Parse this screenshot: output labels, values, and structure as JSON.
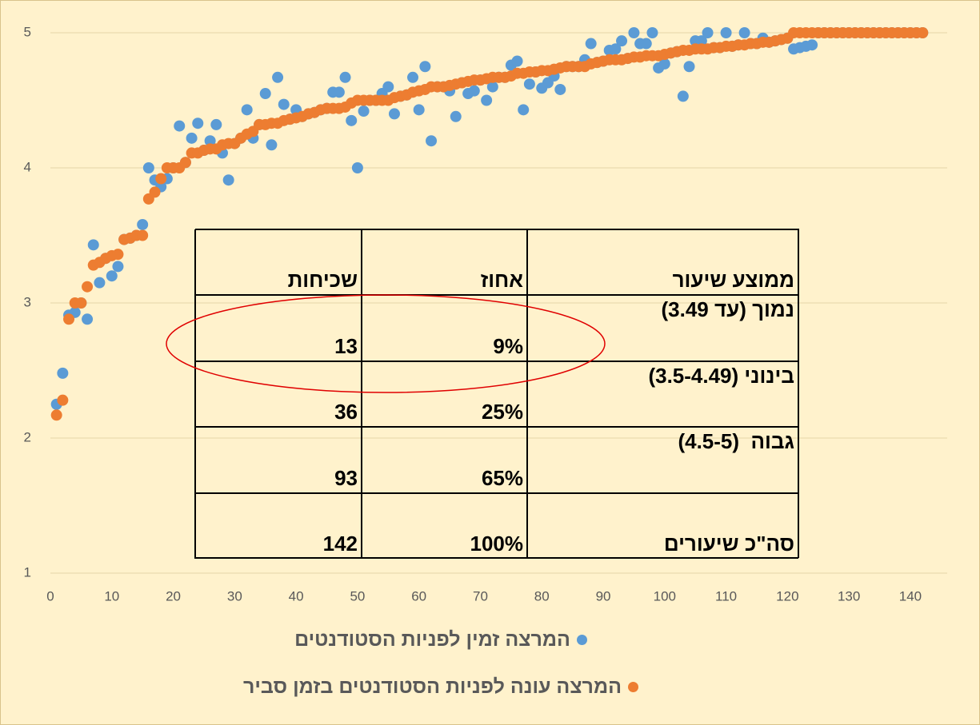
{
  "chart_data": {
    "type": "scatter",
    "x": [
      1,
      2,
      3,
      4,
      5,
      6,
      7,
      8,
      9,
      10,
      11,
      12,
      13,
      14,
      15,
      16,
      17,
      18,
      19,
      20,
      21,
      22,
      23,
      24,
      25,
      26,
      27,
      28,
      29,
      30,
      31,
      32,
      33,
      34,
      35,
      36,
      37,
      38,
      39,
      40,
      41,
      42,
      43,
      44,
      45,
      46,
      47,
      48,
      49,
      50,
      51,
      52,
      53,
      54,
      55,
      56,
      57,
      58,
      59,
      60,
      61,
      62,
      63,
      64,
      65,
      66,
      67,
      68,
      69,
      70,
      71,
      72,
      73,
      74,
      75,
      76,
      77,
      78,
      79,
      80,
      81,
      82,
      83,
      84,
      85,
      86,
      87,
      88,
      89,
      90,
      91,
      92,
      93,
      94,
      95,
      96,
      97,
      98,
      99,
      100,
      101,
      102,
      103,
      104,
      105,
      106,
      107,
      108,
      109,
      110,
      111,
      112,
      113,
      114,
      115,
      116,
      117,
      118,
      119,
      120,
      121,
      122,
      123,
      124,
      125,
      126,
      127,
      128,
      129,
      130,
      131,
      132,
      133,
      134,
      135,
      136,
      137,
      138,
      139,
      140,
      141,
      142
    ],
    "series": [
      {
        "name": "המרצה זמין לפניות הסטודנטים",
        "color": "#5b9bd5",
        "values": [
          2.25,
          2.48,
          2.91,
          2.93,
          3.0,
          2.88,
          3.43,
          3.15,
          3.33,
          3.2,
          3.27,
          3.47,
          3.48,
          3.5,
          3.58,
          4.0,
          3.91,
          3.86,
          3.92,
          4.0,
          4.31,
          4.04,
          4.22,
          4.33,
          4.13,
          4.2,
          4.32,
          4.11,
          3.91,
          4.18,
          4.22,
          4.43,
          4.22,
          4.32,
          4.55,
          4.17,
          4.67,
          4.47,
          4.36,
          4.43,
          4.38,
          4.4,
          4.41,
          4.43,
          4.44,
          4.56,
          4.56,
          4.67,
          4.35,
          4.0,
          4.42,
          4.5,
          4.5,
          4.55,
          4.6,
          4.4,
          4.53,
          4.54,
          4.67,
          4.43,
          4.75,
          4.2,
          4.6,
          4.6,
          4.57,
          4.38,
          4.63,
          4.55,
          4.57,
          4.65,
          4.5,
          4.6,
          4.67,
          4.67,
          4.76,
          4.79,
          4.43,
          4.62,
          4.71,
          4.59,
          4.63,
          4.68,
          4.58,
          4.75,
          4.75,
          4.75,
          4.8,
          4.92,
          4.78,
          4.79,
          4.87,
          4.88,
          4.94,
          4.81,
          5.0,
          4.92,
          4.92,
          5.0,
          4.74,
          4.77,
          4.85,
          4.86,
          4.53,
          4.75,
          4.94,
          4.94,
          5.0,
          4.89,
          4.89,
          5.0,
          4.9,
          4.91,
          5.0,
          4.92,
          4.92,
          4.96,
          4.93,
          4.94,
          4.95,
          4.96,
          4.88,
          4.89,
          4.9,
          4.91,
          5,
          5,
          5,
          5,
          5,
          5,
          5,
          5,
          5,
          5,
          5,
          5,
          5,
          5,
          5,
          5,
          5,
          5
        ]
      },
      {
        "name": "המרצה עונה לפניות הסטודנטים בזמן סביר",
        "color": "#ed7d31",
        "values": [
          2.17,
          2.28,
          2.88,
          3.0,
          3.0,
          3.12,
          3.28,
          3.3,
          3.33,
          3.35,
          3.36,
          3.47,
          3.48,
          3.5,
          3.5,
          3.77,
          3.82,
          3.92,
          4.0,
          4.0,
          4.0,
          4.04,
          4.11,
          4.11,
          4.13,
          4.14,
          4.14,
          4.17,
          4.18,
          4.18,
          4.22,
          4.25,
          4.27,
          4.32,
          4.32,
          4.33,
          4.33,
          4.35,
          4.36,
          4.37,
          4.38,
          4.4,
          4.41,
          4.43,
          4.44,
          4.44,
          4.44,
          4.45,
          4.48,
          4.5,
          4.5,
          4.5,
          4.5,
          4.5,
          4.5,
          4.52,
          4.53,
          4.54,
          4.56,
          4.57,
          4.58,
          4.6,
          4.6,
          4.6,
          4.61,
          4.62,
          4.63,
          4.64,
          4.65,
          4.65,
          4.66,
          4.67,
          4.67,
          4.67,
          4.68,
          4.7,
          4.7,
          4.71,
          4.71,
          4.72,
          4.72,
          4.73,
          4.74,
          4.75,
          4.75,
          4.75,
          4.75,
          4.77,
          4.78,
          4.79,
          4.8,
          4.8,
          4.8,
          4.81,
          4.82,
          4.82,
          4.83,
          4.83,
          4.83,
          4.84,
          4.85,
          4.86,
          4.87,
          4.87,
          4.88,
          4.88,
          4.88,
          4.89,
          4.89,
          4.9,
          4.9,
          4.91,
          4.91,
          4.92,
          4.92,
          4.93,
          4.93,
          4.94,
          4.95,
          4.96,
          5,
          5,
          5,
          5,
          5,
          5,
          5,
          5,
          5,
          5,
          5,
          5,
          5,
          5,
          5,
          5,
          5,
          5,
          5,
          5,
          5,
          5
        ]
      }
    ],
    "xlim": [
      0,
      146
    ],
    "xticks": [
      0,
      10,
      20,
      30,
      40,
      50,
      60,
      70,
      80,
      90,
      100,
      110,
      120,
      130,
      140
    ],
    "ylim": [
      1,
      5
    ],
    "yticks": [
      1,
      2,
      3,
      4,
      5
    ],
    "grid": true
  },
  "table": {
    "header": [
      "ממוצע שיעור",
      "אחוז",
      "שכיחות"
    ],
    "rows": [
      [
        "נמוך (עד 3.49)",
        "9%",
        "13"
      ],
      [
        "בינוני (3.5-4.49)",
        "25%",
        "36"
      ],
      [
        "גבוה  (4.5-5)",
        "65%",
        "93"
      ],
      [
        "סה\"כ שיעורים",
        "100%",
        "142"
      ]
    ]
  }
}
